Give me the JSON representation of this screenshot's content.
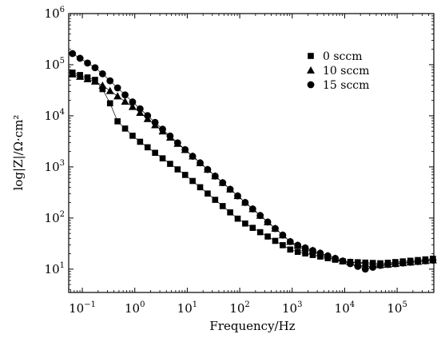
{
  "chart_data": {
    "type": "scatter",
    "xlabel": "Frequency/Hz",
    "ylabel": "log|Z|/Ω·cm²",
    "x_scale": "log",
    "y_scale": "log",
    "xlim": [
      0.055,
      500000
    ],
    "ylim": [
      3.5,
      1000000
    ],
    "x_ticks": [
      {
        "base": "10",
        "exp": "−1",
        "value": 0.1
      },
      {
        "base": "10",
        "exp": "0",
        "value": 1
      },
      {
        "base": "10",
        "exp": "1",
        "value": 10
      },
      {
        "base": "10",
        "exp": "2",
        "value": 100
      },
      {
        "base": "10",
        "exp": "3",
        "value": 1000
      },
      {
        "base": "10",
        "exp": "4",
        "value": 10000
      },
      {
        "base": "10",
        "exp": "5",
        "value": 100000
      }
    ],
    "y_ticks": [
      {
        "base": "10",
        "exp": "1",
        "value": 10
      },
      {
        "base": "10",
        "exp": "2",
        "value": 100
      },
      {
        "base": "10",
        "exp": "3",
        "value": 1000
      },
      {
        "base": "10",
        "exp": "4",
        "value": 10000
      },
      {
        "base": "10",
        "exp": "5",
        "value": 100000
      },
      {
        "base": "10",
        "exp": "6",
        "value": 1000000
      }
    ],
    "legend_position": "top-right",
    "grid": false,
    "series": [
      {
        "name": "0 sccm",
        "marker": "square",
        "x_range": [
          0.065,
          480000
        ],
        "points_per_decade": 7,
        "key_points": [
          [
            0.065,
            70000
          ],
          [
            0.18,
            50000
          ],
          [
            0.3,
            25000
          ],
          [
            0.43,
            8500
          ],
          [
            1,
            3700
          ],
          [
            10,
            650
          ],
          [
            100,
            90
          ],
          [
            1000,
            23
          ],
          [
            10000,
            14
          ],
          [
            50000,
            13
          ],
          [
            480000,
            16
          ]
        ]
      },
      {
        "name": "10 sccm",
        "marker": "triangle",
        "x_range": [
          0.065,
          480000
        ],
        "points_per_decade": 7,
        "key_points": [
          [
            0.065,
            65000
          ],
          [
            0.2,
            45000
          ],
          [
            1,
            14000
          ],
          [
            10,
            2000
          ],
          [
            100,
            250
          ],
          [
            1000,
            32
          ],
          [
            10000,
            14
          ],
          [
            50000,
            12
          ],
          [
            480000,
            15
          ]
        ]
      },
      {
        "name": "15 sccm",
        "marker": "circle",
        "x_range": [
          0.065,
          480000
        ],
        "points_per_decade": 7,
        "key_points": [
          [
            0.065,
            165000
          ],
          [
            0.2,
            80000
          ],
          [
            1,
            17000
          ],
          [
            10,
            2000
          ],
          [
            100,
            250
          ],
          [
            1000,
            32
          ],
          [
            10000,
            14
          ],
          [
            25000,
            10
          ],
          [
            50000,
            12
          ],
          [
            480000,
            15
          ]
        ]
      }
    ]
  }
}
